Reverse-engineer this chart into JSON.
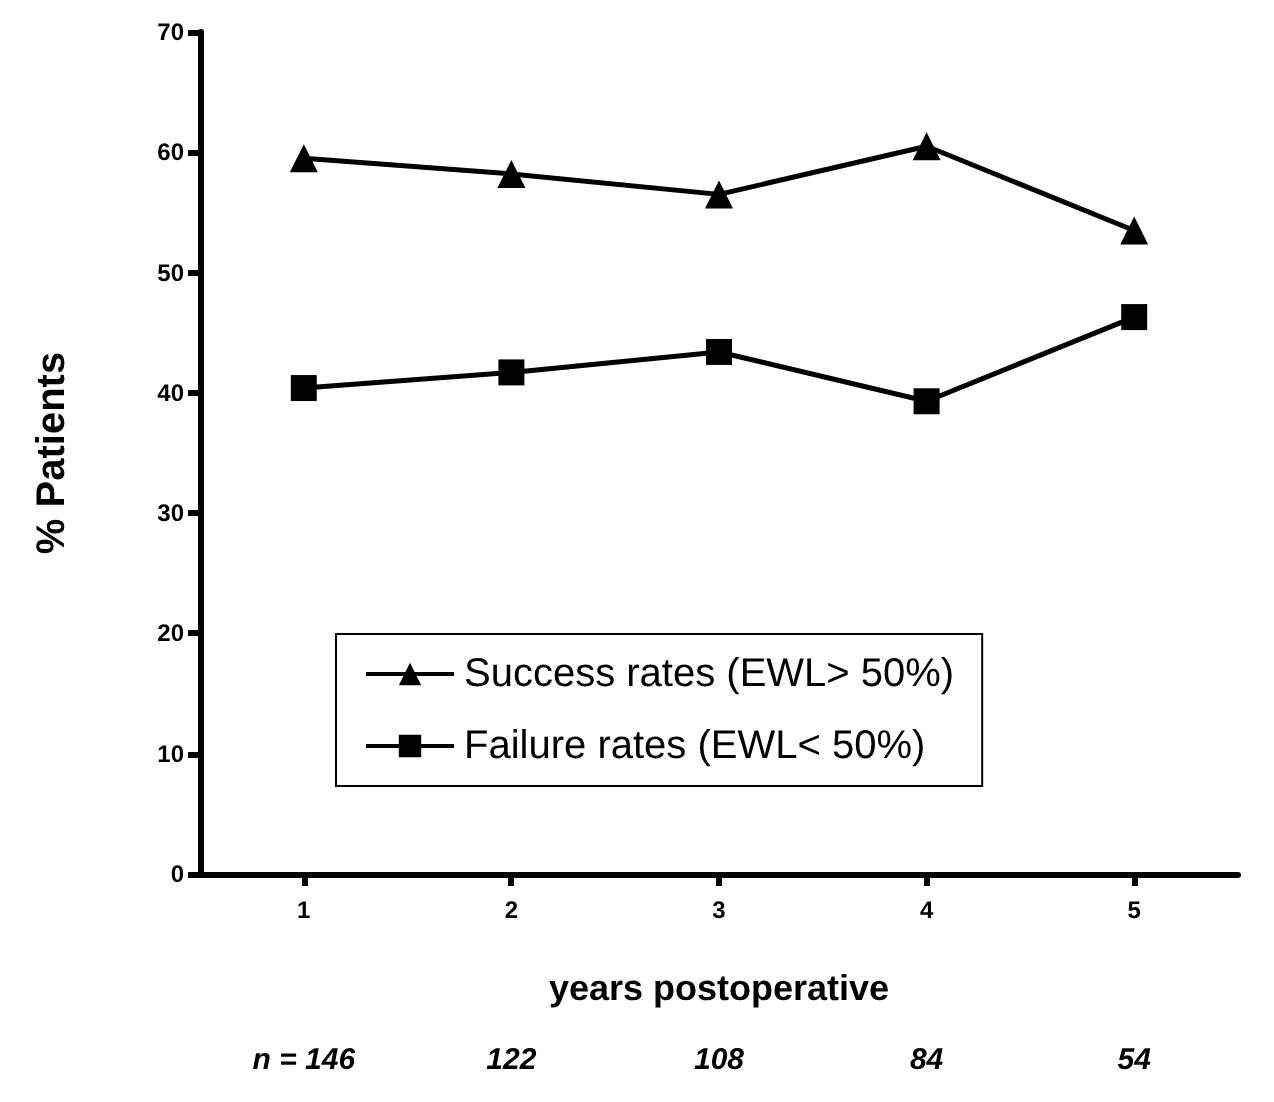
{
  "chart_data": {
    "type": "line",
    "xlabel": "years postoperative",
    "ylabel": "% Patients",
    "categories": [
      "1",
      "2",
      "3",
      "4",
      "5"
    ],
    "series": [
      {
        "name": "Success rates (EWL> 50%)",
        "color": "#000000",
        "marker": "triangle",
        "values": [
          59.5,
          58.2,
          56.5,
          60.5,
          53.5
        ]
      },
      {
        "name": "Failure rates (EWL< 50%)",
        "color": "#000000",
        "marker": "square",
        "values": [
          40.4,
          41.7,
          43.4,
          39.3,
          46.3
        ]
      }
    ],
    "ylim": [
      0,
      70
    ],
    "yticks": [
      0,
      10,
      20,
      30,
      40,
      50,
      60,
      70
    ],
    "grid": false,
    "legend": "bottom left",
    "annotations": [
      "n = 146",
      "122",
      "108",
      "84",
      "54"
    ]
  }
}
